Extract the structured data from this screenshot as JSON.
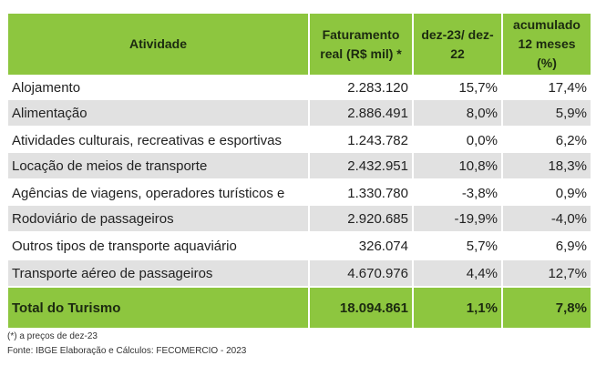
{
  "headers": [
    "Atividade",
    "Faturamento real (R$ mil) *",
    "dez-23/ dez-22",
    "acumulado 12 meses (%)"
  ],
  "rows": [
    {
      "atividade": "Alojamento",
      "faturamento": "2.283.120",
      "dez": "15,7%",
      "acum": "17,4%"
    },
    {
      "atividade": "Alimentação",
      "faturamento": "2.886.491",
      "dez": "8,0%",
      "acum": "5,9%"
    },
    {
      "atividade": "Atividades culturais, recreativas e esportivas",
      "faturamento": "1.243.782",
      "dez": "0,0%",
      "acum": "6,2%"
    },
    {
      "atividade": "Locação de meios de transporte",
      "faturamento": "2.432.951",
      "dez": "10,8%",
      "acum": "18,3%"
    },
    {
      "atividade": " Agências de viagens, operadores turísticos e",
      "faturamento": "1.330.780",
      "dez": "-3,8%",
      "acum": "0,9%"
    },
    {
      "atividade": "Rodoviário de passageiros",
      "faturamento": "2.920.685",
      "dez": "-19,9%",
      "acum": "-4,0%"
    },
    {
      "atividade": "Outros tipos de transporte aquaviário",
      "faturamento": "326.074",
      "dez": "5,7%",
      "acum": "6,9%"
    },
    {
      "atividade": "Transporte aéreo de passageiros",
      "faturamento": "4.670.976",
      "dez": "4,4%",
      "acum": "12,7%"
    }
  ],
  "total": {
    "atividade": "Total do Turismo",
    "faturamento": "18.094.861",
    "dez": "1,1%",
    "acum": "7,8%"
  },
  "footnote": "(*) a preços de dez-23",
  "source": "Fonte: IBGE Elaboração e Cálculos: FECOMERCIO - 2023"
}
